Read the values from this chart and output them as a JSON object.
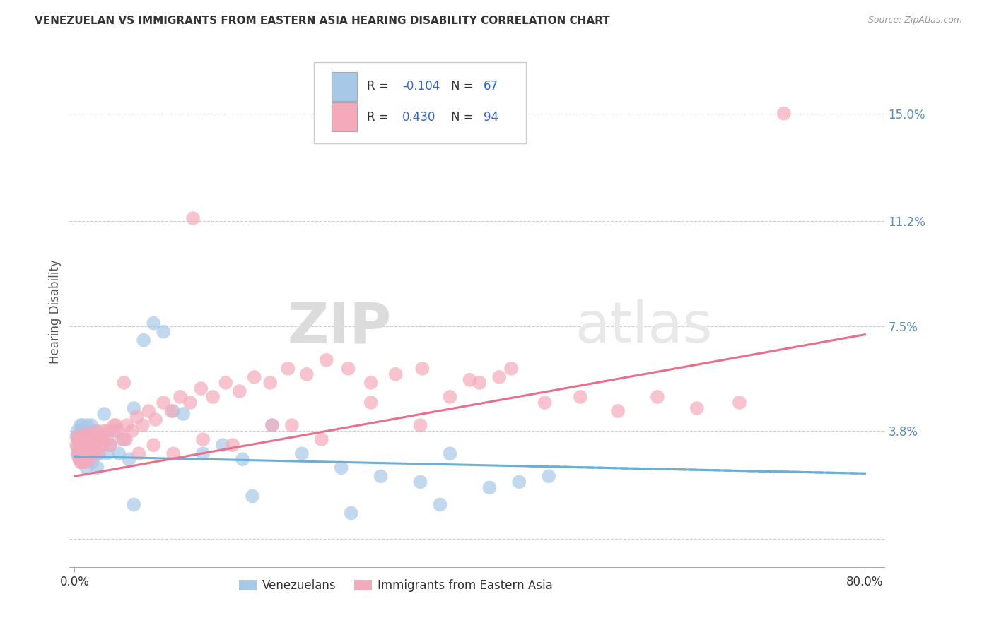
{
  "title": "VENEZUELAN VS IMMIGRANTS FROM EASTERN ASIA HEARING DISABILITY CORRELATION CHART",
  "source": "Source: ZipAtlas.com",
  "ylabel": "Hearing Disability",
  "y_ticks": [
    0.0,
    0.038,
    0.075,
    0.112,
    0.15
  ],
  "y_tick_labels": [
    "",
    "3.8%",
    "7.5%",
    "11.2%",
    "15.0%"
  ],
  "x_min": -0.005,
  "x_max": 0.82,
  "y_min": -0.01,
  "y_max": 0.17,
  "color_blue": "#A8C8E8",
  "color_pink": "#F4AABB",
  "color_blue_line": "#6BAED6",
  "color_pink_line": "#E8708A",
  "ven_x": [
    0.002,
    0.003,
    0.003,
    0.004,
    0.004,
    0.005,
    0.005,
    0.005,
    0.006,
    0.006,
    0.006,
    0.007,
    0.007,
    0.007,
    0.008,
    0.008,
    0.008,
    0.009,
    0.009,
    0.01,
    0.01,
    0.011,
    0.011,
    0.012,
    0.012,
    0.013,
    0.013,
    0.014,
    0.015,
    0.016,
    0.017,
    0.018,
    0.019,
    0.02,
    0.022,
    0.023,
    0.025,
    0.027,
    0.03,
    0.033,
    0.036,
    0.04,
    0.045,
    0.05,
    0.055,
    0.06,
    0.07,
    0.08,
    0.09,
    0.1,
    0.11,
    0.13,
    0.15,
    0.17,
    0.2,
    0.23,
    0.27,
    0.31,
    0.35,
    0.38,
    0.42,
    0.45,
    0.48,
    0.37,
    0.28,
    0.18,
    0.06
  ],
  "ven_y": [
    0.036,
    0.038,
    0.032,
    0.035,
    0.03,
    0.037,
    0.033,
    0.028,
    0.036,
    0.032,
    0.04,
    0.035,
    0.03,
    0.038,
    0.033,
    0.027,
    0.04,
    0.034,
    0.028,
    0.036,
    0.032,
    0.035,
    0.029,
    0.038,
    0.025,
    0.033,
    0.04,
    0.028,
    0.035,
    0.03,
    0.04,
    0.027,
    0.033,
    0.032,
    0.038,
    0.025,
    0.03,
    0.035,
    0.044,
    0.03,
    0.033,
    0.038,
    0.03,
    0.035,
    0.028,
    0.046,
    0.07,
    0.076,
    0.073,
    0.045,
    0.044,
    0.03,
    0.033,
    0.028,
    0.04,
    0.03,
    0.025,
    0.022,
    0.02,
    0.03,
    0.018,
    0.02,
    0.022,
    0.012,
    0.009,
    0.015,
    0.012
  ],
  "asia_x": [
    0.002,
    0.003,
    0.003,
    0.004,
    0.004,
    0.005,
    0.005,
    0.006,
    0.006,
    0.007,
    0.007,
    0.008,
    0.008,
    0.009,
    0.009,
    0.01,
    0.01,
    0.011,
    0.012,
    0.012,
    0.013,
    0.014,
    0.015,
    0.016,
    0.017,
    0.018,
    0.02,
    0.022,
    0.024,
    0.026,
    0.028,
    0.03,
    0.033,
    0.036,
    0.04,
    0.044,
    0.048,
    0.053,
    0.058,
    0.063,
    0.069,
    0.075,
    0.082,
    0.09,
    0.098,
    0.107,
    0.117,
    0.128,
    0.14,
    0.153,
    0.167,
    0.182,
    0.198,
    0.216,
    0.235,
    0.255,
    0.277,
    0.3,
    0.325,
    0.352,
    0.38,
    0.41,
    0.442,
    0.476,
    0.512,
    0.55,
    0.59,
    0.63,
    0.673,
    0.718,
    0.4,
    0.35,
    0.3,
    0.25,
    0.2,
    0.16,
    0.13,
    0.1,
    0.08,
    0.065,
    0.052,
    0.042,
    0.034,
    0.028,
    0.023,
    0.019,
    0.015,
    0.013,
    0.01,
    0.008,
    0.05,
    0.12,
    0.22,
    0.43
  ],
  "asia_y": [
    0.033,
    0.036,
    0.03,
    0.035,
    0.029,
    0.034,
    0.028,
    0.033,
    0.027,
    0.035,
    0.03,
    0.033,
    0.027,
    0.036,
    0.03,
    0.033,
    0.027,
    0.035,
    0.03,
    0.037,
    0.032,
    0.035,
    0.03,
    0.033,
    0.036,
    0.03,
    0.035,
    0.038,
    0.03,
    0.033,
    0.036,
    0.038,
    0.035,
    0.033,
    0.04,
    0.038,
    0.035,
    0.04,
    0.038,
    0.043,
    0.04,
    0.045,
    0.042,
    0.048,
    0.045,
    0.05,
    0.048,
    0.053,
    0.05,
    0.055,
    0.052,
    0.057,
    0.055,
    0.06,
    0.058,
    0.063,
    0.06,
    0.055,
    0.058,
    0.06,
    0.05,
    0.055,
    0.06,
    0.048,
    0.05,
    0.045,
    0.05,
    0.046,
    0.048,
    0.15,
    0.056,
    0.04,
    0.048,
    0.035,
    0.04,
    0.033,
    0.035,
    0.03,
    0.033,
    0.03,
    0.035,
    0.04,
    0.038,
    0.033,
    0.035,
    0.03,
    0.028,
    0.032,
    0.03,
    0.028,
    0.055,
    0.113,
    0.04,
    0.057
  ],
  "ven_line_x": [
    0.0,
    0.8
  ],
  "ven_line_y": [
    0.029,
    0.023
  ],
  "asia_line_x": [
    0.0,
    0.8
  ],
  "asia_line_y": [
    0.022,
    0.072
  ]
}
